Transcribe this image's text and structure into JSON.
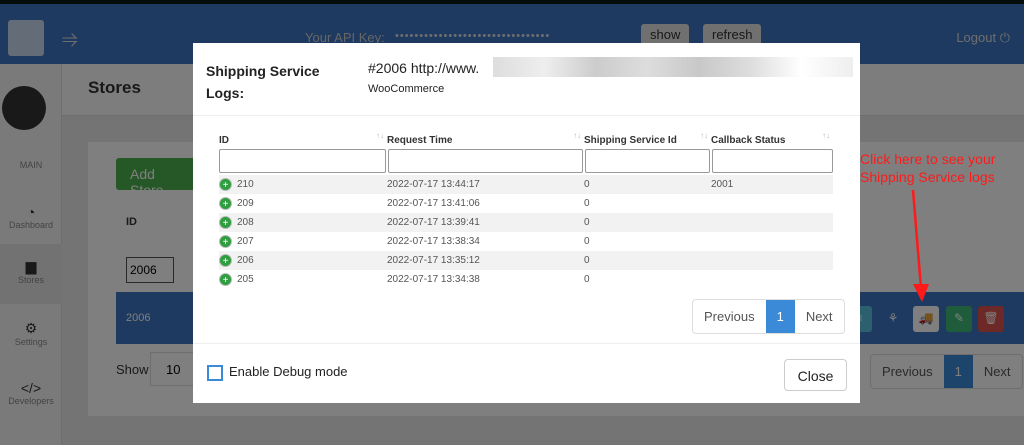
{
  "header": {
    "api_label": "Your API Key:",
    "api_key_masked": "••••••••••••••••••••••••••••••••",
    "show": "show",
    "refresh": "refresh",
    "logout": "Logout"
  },
  "sidebar": {
    "section": "MAIN",
    "items": [
      {
        "label": "Dashboard",
        "icon": "dashboard-icon"
      },
      {
        "label": "Stores",
        "icon": "shopping-bag-icon"
      },
      {
        "label": "Settings",
        "icon": "cogs-icon"
      },
      {
        "label": "Developers",
        "icon": "code-icon"
      }
    ]
  },
  "page": {
    "title": "Stores",
    "add_store": "Add Store",
    "id_header": "ID",
    "id_filter": "2006",
    "row_id": "2006",
    "show_label": "Show",
    "show_value": "10",
    "pagination": {
      "prev": "Previous",
      "page": "1",
      "next": "Next"
    }
  },
  "annotation": "Click here to see your Shipping Service logs",
  "modal": {
    "title": "Shipping Service Logs:",
    "store": "#2006 http://www.",
    "platform": "WooCommerce",
    "columns": [
      "ID",
      "Request Time",
      "Shipping Service Id",
      "Callback Status"
    ],
    "rows": [
      [
        "210",
        "2022-07-17 13:44:17",
        "0",
        "2001"
      ],
      [
        "209",
        "2022-07-17 13:41:06",
        "0",
        ""
      ],
      [
        "208",
        "2022-07-17 13:39:41",
        "0",
        ""
      ],
      [
        "207",
        "2022-07-17 13:38:34",
        "0",
        ""
      ],
      [
        "206",
        "2022-07-17 13:35:12",
        "0",
        ""
      ],
      [
        "205",
        "2022-07-17 13:34:38",
        "0",
        ""
      ]
    ],
    "pagination": {
      "prev": "Previous",
      "page": "1",
      "next": "Next"
    },
    "debug_label": "Enable Debug mode",
    "close": "Close"
  }
}
